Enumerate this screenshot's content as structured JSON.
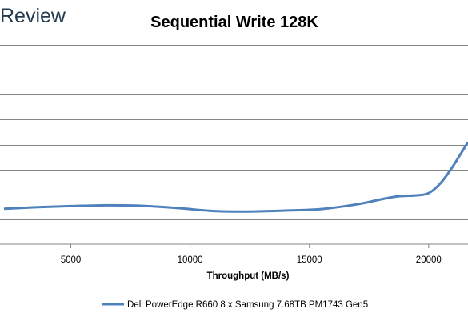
{
  "brand": {
    "logo_text": "Review"
  },
  "chart_data": {
    "type": "line",
    "title": "Sequential Write 128K",
    "xlabel": "Throughput (MB/s)",
    "ylabel": "",
    "x_ticks": [
      5000,
      10000,
      15000,
      20000
    ],
    "xlim": [
      2200,
      21650
    ],
    "ylim": [
      0,
      8
    ],
    "grid": true,
    "legend_position": "bottom",
    "colors": {
      "series": "#4f81bd",
      "grid": "#868686"
    },
    "series": [
      {
        "name": "Dell PowerEdge R660 8 x Samsung 7.68TB PM1743 Gen5",
        "points": [
          {
            "x": 2200,
            "y": 1.42
          },
          {
            "x": 3500,
            "y": 1.48
          },
          {
            "x": 5000,
            "y": 1.53
          },
          {
            "x": 6500,
            "y": 1.56
          },
          {
            "x": 8000,
            "y": 1.54
          },
          {
            "x": 9500,
            "y": 1.45
          },
          {
            "x": 11000,
            "y": 1.33
          },
          {
            "x": 12500,
            "y": 1.31
          },
          {
            "x": 14000,
            "y": 1.35
          },
          {
            "x": 15500,
            "y": 1.41
          },
          {
            "x": 17000,
            "y": 1.6
          },
          {
            "x": 18000,
            "y": 1.8
          },
          {
            "x": 18700,
            "y": 1.92
          },
          {
            "x": 19500,
            "y": 1.96
          },
          {
            "x": 20000,
            "y": 2.05
          },
          {
            "x": 20500,
            "y": 2.45
          },
          {
            "x": 21000,
            "y": 3.1
          },
          {
            "x": 21650,
            "y": 4.1
          }
        ]
      }
    ]
  }
}
